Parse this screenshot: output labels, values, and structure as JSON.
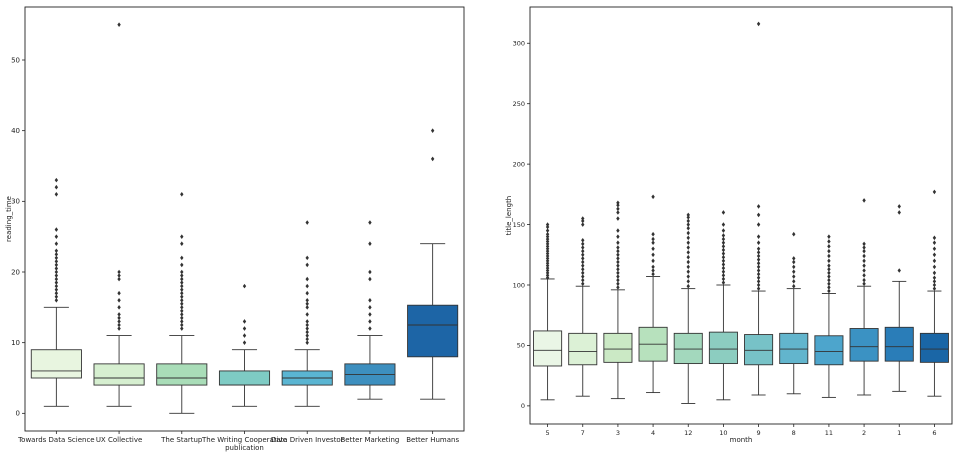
{
  "chart_data": [
    {
      "type": "box",
      "xlabel": "publication",
      "ylabel": "reading_time",
      "ylim": [
        -2.5,
        57.5
      ],
      "yticks": [
        0,
        10,
        20,
        30,
        40,
        50
      ],
      "grid": false,
      "categories": [
        "Towards Data Science",
        "UX Collective",
        "The Startup",
        "The Writing Cooperative",
        "Data Driven Investor",
        "Better Marketing",
        "Better Humans"
      ],
      "boxes": [
        {
          "min": 1,
          "q1": 5,
          "median": 6,
          "q3": 9,
          "max": 15,
          "color": "#e8f5e0",
          "outliers": [
            16,
            16.5,
            17,
            17.5,
            18,
            18.5,
            19,
            19.5,
            20,
            20.5,
            21,
            21.5,
            22,
            22.5,
            23,
            24,
            25,
            26,
            31,
            32,
            33
          ]
        },
        {
          "min": 1,
          "q1": 4,
          "median": 5,
          "q3": 7,
          "max": 11,
          "color": "#d6efd0",
          "outliers": [
            12,
            12.5,
            13,
            13.5,
            14,
            15,
            16,
            17,
            19,
            19.5,
            20,
            55
          ]
        },
        {
          "min": 0,
          "q1": 4,
          "median": 5,
          "q3": 7,
          "max": 11,
          "color": "#a9ddb8",
          "outliers": [
            12,
            12.5,
            13,
            13.5,
            14,
            14.5,
            15,
            15.5,
            16,
            16.5,
            17,
            17.5,
            18,
            18.5,
            19,
            19.5,
            20,
            21,
            22,
            24,
            25,
            31
          ]
        },
        {
          "min": 1,
          "q1": 4,
          "median": 4,
          "q3": 6,
          "max": 9,
          "color": "#7ecbc4",
          "outliers": [
            10,
            11,
            12,
            13,
            18
          ]
        },
        {
          "min": 1,
          "q1": 4,
          "median": 5,
          "q3": 6,
          "max": 9,
          "color": "#5ab5d2",
          "outliers": [
            10,
            10.5,
            11,
            11.5,
            12,
            12.5,
            13,
            14,
            15,
            15.5,
            16,
            17,
            18,
            19,
            21,
            22,
            27
          ]
        },
        {
          "min": 2,
          "q1": 4,
          "median": 5.5,
          "q3": 7,
          "max": 11,
          "color": "#3d8fbf",
          "outliers": [
            12,
            13,
            14,
            15,
            16,
            19,
            20,
            24,
            27
          ]
        },
        {
          "min": 2,
          "q1": 8,
          "median": 12.5,
          "q3": 15.3,
          "max": 24,
          "color": "#1d65a6",
          "outliers": [
            36,
            40
          ]
        }
      ]
    },
    {
      "type": "box",
      "xlabel": "month",
      "ylabel": "title_length",
      "ylim": [
        -15,
        330
      ],
      "yticks": [
        0,
        50,
        100,
        150,
        200,
        250,
        300
      ],
      "grid": false,
      "categories": [
        "5",
        "7",
        "3",
        "4",
        "12",
        "10",
        "9",
        "8",
        "11",
        "2",
        "1",
        "6"
      ],
      "boxes": [
        {
          "min": 5,
          "q1": 33,
          "median": 46,
          "q3": 62,
          "max": 105,
          "color": "#eaf6e6",
          "outliers": [
            106,
            108,
            110,
            112,
            114,
            116,
            118,
            120,
            122,
            124,
            126,
            128,
            130,
            132,
            134,
            136,
            138,
            140,
            142,
            145,
            148,
            150
          ]
        },
        {
          "min": 8,
          "q1": 34,
          "median": 45,
          "q3": 60,
          "max": 99,
          "color": "#dcf1d6",
          "outliers": [
            101,
            104,
            107,
            110,
            113,
            116,
            119,
            122,
            125,
            128,
            131,
            134,
            137,
            150,
            153,
            155
          ]
        },
        {
          "min": 6,
          "q1": 36,
          "median": 47,
          "q3": 60,
          "max": 96,
          "color": "#cbe9c5",
          "outliers": [
            98,
            101,
            104,
            107,
            110,
            113,
            116,
            119,
            122,
            125,
            128,
            131,
            135,
            140,
            145,
            155,
            160,
            163,
            166,
            168
          ]
        },
        {
          "min": 11,
          "q1": 37,
          "median": 51,
          "q3": 65,
          "max": 107,
          "color": "#b7e1bd",
          "outliers": [
            109,
            112,
            115,
            120,
            125,
            130,
            135,
            138,
            142,
            173
          ]
        },
        {
          "min": 2,
          "q1": 35,
          "median": 47,
          "q3": 60,
          "max": 97,
          "color": "#a3d8bd",
          "outliers": [
            99,
            103,
            107,
            111,
            115,
            119,
            123,
            127,
            131,
            135,
            139,
            143,
            147,
            150,
            153,
            156,
            158
          ]
        },
        {
          "min": 5,
          "q1": 35,
          "median": 47,
          "q3": 61,
          "max": 100,
          "color": "#8ccdc0",
          "outliers": [
            102,
            105,
            108,
            111,
            114,
            117,
            120,
            123,
            126,
            129,
            132,
            135,
            138,
            141,
            145,
            150,
            160
          ]
        },
        {
          "min": 9,
          "q1": 34,
          "median": 46,
          "q3": 59,
          "max": 95,
          "color": "#77c2c7",
          "outliers": [
            97,
            100,
            103,
            106,
            109,
            112,
            115,
            118,
            121,
            124,
            127,
            130,
            135,
            140,
            150,
            158,
            165,
            316
          ]
        },
        {
          "min": 10,
          "q1": 35,
          "median": 47,
          "q3": 60,
          "max": 97,
          "color": "#62b5cd",
          "outliers": [
            99,
            103,
            107,
            111,
            115,
            119,
            122,
            142
          ]
        },
        {
          "min": 7,
          "q1": 34,
          "median": 45,
          "q3": 58,
          "max": 93,
          "color": "#4da5cc",
          "outliers": [
            95,
            98,
            101,
            104,
            107,
            110,
            113,
            116,
            120,
            124,
            128,
            132,
            136,
            140
          ]
        },
        {
          "min": 9,
          "q1": 37,
          "median": 49,
          "q3": 64,
          "max": 99,
          "color": "#3b92c3",
          "outliers": [
            101,
            104,
            108,
            112,
            116,
            120,
            124,
            128,
            131,
            134,
            170
          ]
        },
        {
          "min": 12,
          "q1": 37,
          "median": 49,
          "q3": 65,
          "max": 103,
          "color": "#2a7db8",
          "outliers": [
            112,
            160,
            165
          ]
        },
        {
          "min": 8,
          "q1": 36,
          "median": 47,
          "q3": 60,
          "max": 95,
          "color": "#1a66a6",
          "outliers": [
            97,
            100,
            103,
            106,
            110,
            115,
            120,
            125,
            130,
            135,
            139,
            177
          ]
        }
      ]
    }
  ]
}
